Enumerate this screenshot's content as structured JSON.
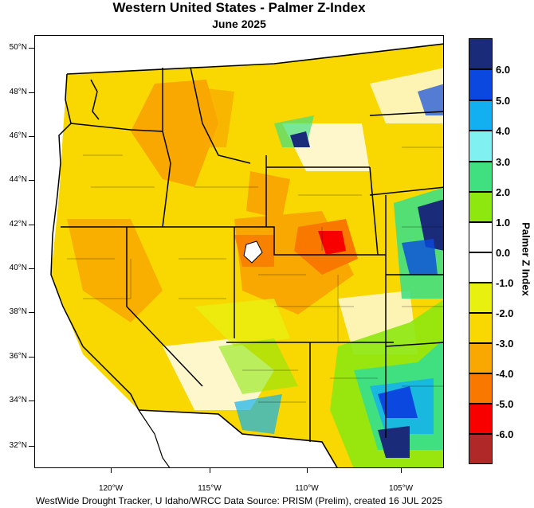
{
  "title": "Western United States - Palmer Z-Index",
  "subtitle": "June 2025",
  "footer": "WestWide Drought Tracker, U Idaho/WRCC Data Source: PRISM (Prelim), created 16 JUL 2025",
  "colorbar_title": "Palmer Z Index",
  "lat_labels": [
    "50°N",
    "48°N",
    "46°N",
    "44°N",
    "42°N",
    "40°N",
    "38°N",
    "36°N",
    "34°N",
    "32°N"
  ],
  "lon_labels": [
    "120°W",
    "115°W",
    "110°W",
    "105°W"
  ],
  "legend": [
    {
      "label": "6.0",
      "color": "#1a2b7a"
    },
    {
      "label": "5.0",
      "color": "#0a48e0"
    },
    {
      "label": "4.0",
      "color": "#12b0f0"
    },
    {
      "label": "3.0",
      "color": "#80f0f0"
    },
    {
      "label": "2.0",
      "color": "#40e080"
    },
    {
      "label": "1.0",
      "color": "#8ee810"
    },
    {
      "label": "0.0",
      "color": "#ffffff"
    },
    {
      "label": "-1.0",
      "color": "#ffffff"
    },
    {
      "label": "-2.0",
      "color": "#e8f010"
    },
    {
      "label": "-3.0",
      "color": "#f8d800"
    },
    {
      "label": "-4.0",
      "color": "#f8a800"
    },
    {
      "label": "-5.0",
      "color": "#f87800"
    },
    {
      "label": "-6.0",
      "color": "#f80000"
    },
    {
      "label": "",
      "color": "#b02828"
    }
  ],
  "palette": {
    "dry_base": "#f8d800",
    "dry_mid": "#f8a800",
    "dry_strong": "#f87800",
    "dry_extreme": "#f80000",
    "normal": "#ffffff",
    "slightly_dry": "#e8f010",
    "wet_light": "#8ee810",
    "wet_mid": "#40e080",
    "wet_strong": "#12b0f0",
    "wet_very": "#0a48e0",
    "wet_extreme": "#1a2b7a"
  }
}
